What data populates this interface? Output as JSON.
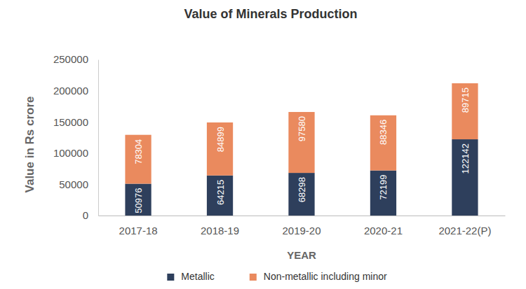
{
  "chart_data": {
    "type": "bar",
    "title": "Value of Minerals Production",
    "x_label": "YEAR",
    "y_label": "Value in Rs crore",
    "categories": [
      "2017-18",
      "2018-19",
      "2019-20",
      "2020-21",
      "2021-22(P)"
    ],
    "series": [
      {
        "name": "Metallic",
        "color": "#2e3f5c",
        "values": [
          50976,
          64215,
          68298,
          72199,
          122142
        ]
      },
      {
        "name": "Non-metallic including minor",
        "color": "#ea8a5e",
        "values": [
          78304,
          84899,
          97580,
          88346,
          89715
        ]
      }
    ],
    "ylim": [
      0,
      250000
    ],
    "yticks": [
      0,
      50000,
      100000,
      150000,
      200000,
      250000
    ],
    "stacked": true,
    "grid": false,
    "data_labels": true,
    "legend": "bottom"
  }
}
